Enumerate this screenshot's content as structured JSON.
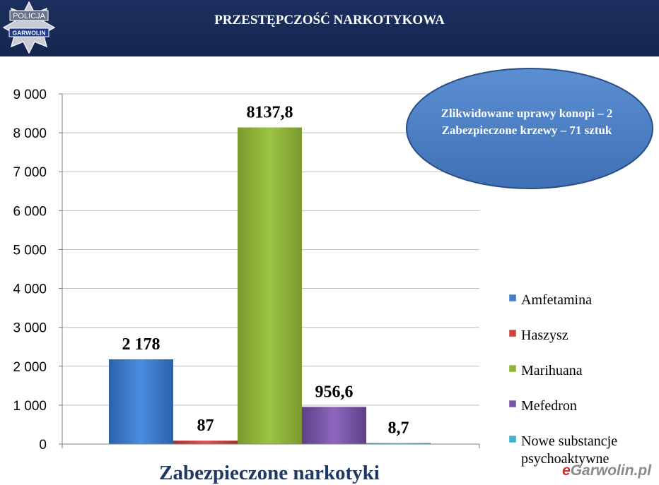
{
  "header": {
    "title": "PRZESTĘPCZOŚĆ NARKOTYKOWA",
    "badge_top": "POLICJA",
    "badge_bottom": "GARWOLIN"
  },
  "annotation": {
    "line1": "Zlikwidowane uprawy konopi – 2",
    "line2": "Zabezpieczone krzewy – 71 sztuk"
  },
  "watermark": {
    "prefix": "e",
    "rest": "Garwolin.pl"
  },
  "chart_data": {
    "type": "bar",
    "xlabel": "Zabezpieczone narkotyki",
    "ylim": [
      0,
      9000
    ],
    "yticks": [
      "0",
      "1 000",
      "2 000",
      "3 000",
      "4 000",
      "5 000",
      "6 000",
      "7 000",
      "8 000",
      "9 000"
    ],
    "ytick_values": [
      0,
      1000,
      2000,
      3000,
      4000,
      5000,
      6000,
      7000,
      8000,
      9000
    ],
    "grid": true,
    "legend_position": "right",
    "series": [
      {
        "name": "Amfetamina",
        "value": 2178,
        "label": "2 178",
        "color": "#3f7fd0"
      },
      {
        "name": "Haszysz",
        "value": 87,
        "label": "87",
        "color": "#d0403c"
      },
      {
        "name": "Marihuana",
        "value": 8137.8,
        "label": "8137,8",
        "color": "#8fb43a"
      },
      {
        "name": "Mefedron",
        "value": 956.6,
        "label": "956,6",
        "color": "#7a54a8"
      },
      {
        "name": "Nowe substancje psychoaktywne",
        "value": 8.7,
        "label": "8,7",
        "color": "#3fb2cc"
      }
    ]
  }
}
